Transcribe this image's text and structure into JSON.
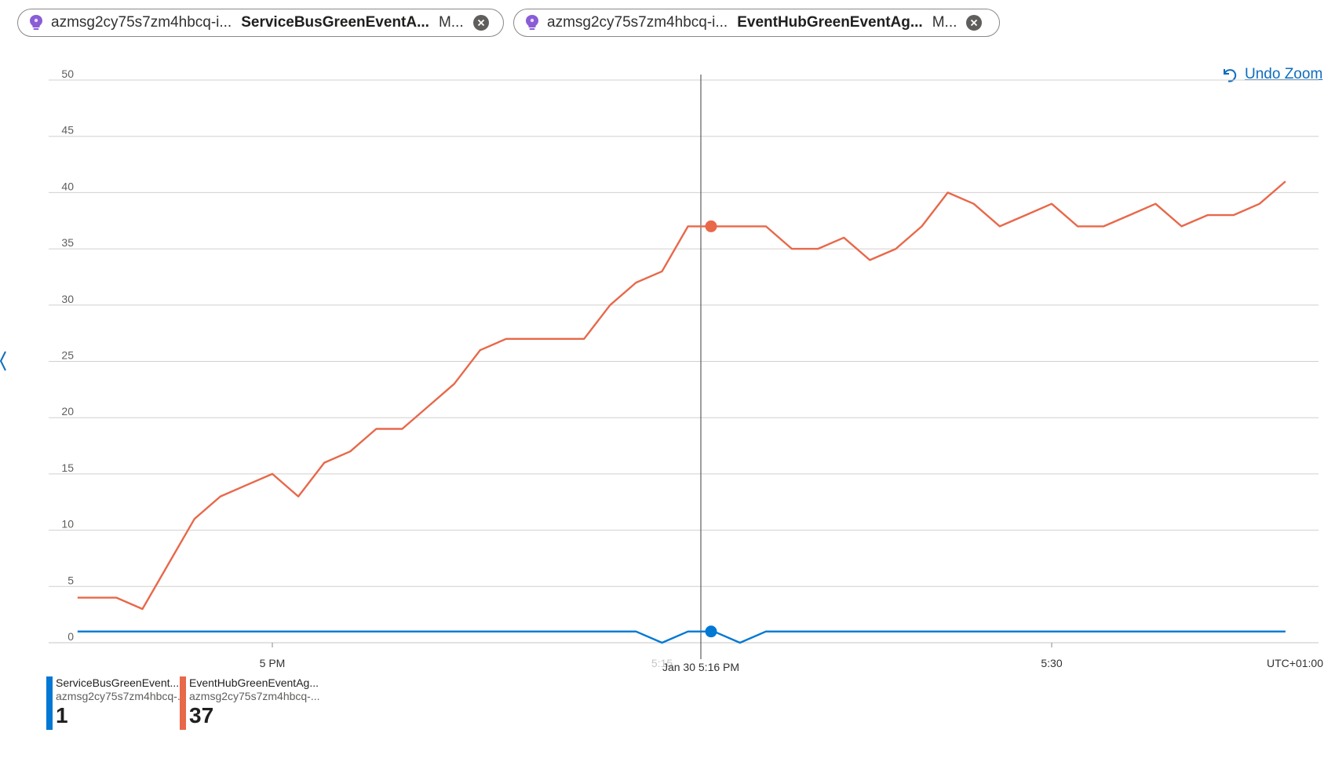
{
  "pills": [
    {
      "resource": "azmsg2cy75s7zm4hbcq-i...",
      "metric": "ServiceBusGreenEventA...",
      "aggregation": "M...",
      "icon": "lightbulb-icon"
    },
    {
      "resource": "azmsg2cy75s7zm4hbcq-i...",
      "metric": "EventHubGreenEventAg...",
      "aggregation": "M...",
      "icon": "lightbulb-icon"
    }
  ],
  "undo_zoom_label": "Undo Zoom",
  "timezone_label": "UTC+01:00",
  "cursor_label": "Jan 30 5:16 PM",
  "faded_tick_label": "5:15",
  "legend": [
    {
      "name": "ServiceBusGreenEvent...",
      "resource": "azmsg2cy75s7zm4hbcq-...",
      "value": "1",
      "color": "#0078d4"
    },
    {
      "name": "EventHubGreenEventAg...",
      "resource": "azmsg2cy75s7zm4hbcq-...",
      "value": "37",
      "color": "#e8684a"
    }
  ],
  "chart_data": {
    "type": "line",
    "ylim": [
      0,
      50
    ],
    "y_ticks": [
      0,
      5,
      10,
      15,
      20,
      25,
      30,
      35,
      40,
      45,
      50
    ],
    "x_range_minutes": [
      -7.5,
      39
    ],
    "x_ticks": [
      {
        "label": "5 PM",
        "minute": 0
      },
      {
        "label": "5:30",
        "minute": 30
      }
    ],
    "cursor_minute": 16.5,
    "grid": true,
    "series": [
      {
        "name": "ServiceBusGreenEventA...",
        "color": "#0078d4",
        "x_minutes": [
          -7.5,
          -6,
          -5,
          -4,
          -3,
          -2,
          -1,
          0,
          1,
          2,
          3,
          4,
          5,
          6,
          7,
          8,
          9,
          10,
          11,
          12,
          13,
          14,
          15,
          16,
          17,
          18,
          19,
          20,
          21,
          22,
          23,
          24,
          25,
          26,
          27,
          28,
          29,
          30,
          31,
          32,
          33,
          34,
          35,
          36,
          37,
          38,
          39
        ],
        "values": [
          1,
          1,
          1,
          1,
          1,
          1,
          1,
          1,
          1,
          1,
          1,
          1,
          1,
          1,
          1,
          1,
          1,
          1,
          1,
          1,
          1,
          1,
          0,
          1,
          1,
          0,
          1,
          1,
          1,
          1,
          1,
          1,
          1,
          1,
          1,
          1,
          1,
          1,
          1,
          1,
          1,
          1,
          1,
          1,
          1,
          1,
          1
        ]
      },
      {
        "name": "EventHubGreenEventAg...",
        "color": "#e8684a",
        "x_minutes": [
          -7.5,
          -6,
          -5,
          -4,
          -3,
          -2,
          -1,
          0,
          1,
          2,
          3,
          4,
          5,
          6,
          7,
          8,
          9,
          10,
          11,
          12,
          13,
          14,
          15,
          16,
          17,
          18,
          19,
          20,
          21,
          22,
          23,
          24,
          25,
          26,
          27,
          28,
          29,
          30,
          31,
          32,
          33,
          34,
          35,
          36,
          37,
          38,
          39
        ],
        "values": [
          4,
          4,
          3,
          7,
          11,
          13,
          14,
          15,
          13,
          16,
          17,
          19,
          19,
          21,
          23,
          26,
          27,
          27,
          27,
          27,
          30,
          32,
          33,
          37,
          37,
          37,
          37,
          35,
          35,
          36,
          34,
          35,
          37,
          40,
          39,
          37,
          38,
          39,
          37,
          37,
          38,
          39,
          37,
          38,
          38,
          39,
          41
        ]
      }
    ],
    "highlight": [
      {
        "series": 0,
        "minute": 16.5,
        "value": 1
      },
      {
        "series": 1,
        "minute": 16.5,
        "value": 37
      }
    ]
  }
}
